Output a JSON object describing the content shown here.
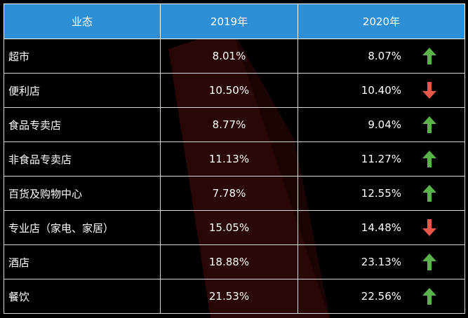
{
  "header": {
    "col1": "业态",
    "col2": "2019年",
    "col3": "2020年"
  },
  "rows": [
    {
      "name": "超市",
      "v2019": "8.01%",
      "v2020": "8.07%",
      "trend": "up"
    },
    {
      "name": "便利店",
      "v2019": "10.50%",
      "v2020": "10.40%",
      "trend": "down"
    },
    {
      "name": "食品专卖店",
      "v2019": "8.77%",
      "v2020": "9.04%",
      "trend": "up"
    },
    {
      "name": "非食品专卖店",
      "v2019": "11.13%",
      "v2020": "11.27%",
      "trend": "up"
    },
    {
      "name": "百货及购物中心",
      "v2019": "7.78%",
      "v2020": "12.55%",
      "trend": "up"
    },
    {
      "name": "专业店（家电、家居）",
      "v2019": "15.05%",
      "v2020": "14.48%",
      "trend": "down"
    },
    {
      "name": "酒店",
      "v2019": "18.88%",
      "v2020": "23.13%",
      "trend": "up"
    },
    {
      "name": "餐饮",
      "v2019": "21.53%",
      "v2020": "22.56%",
      "trend": "up"
    }
  ],
  "colors": {
    "header_bg": "#2f8fd6",
    "up_arrow": "#5ab24a",
    "down_arrow": "#e8564a",
    "background": "#000000",
    "accent_shape": "#2a0707"
  },
  "icons": {
    "up": "arrow-up-icon",
    "down": "arrow-down-icon"
  }
}
